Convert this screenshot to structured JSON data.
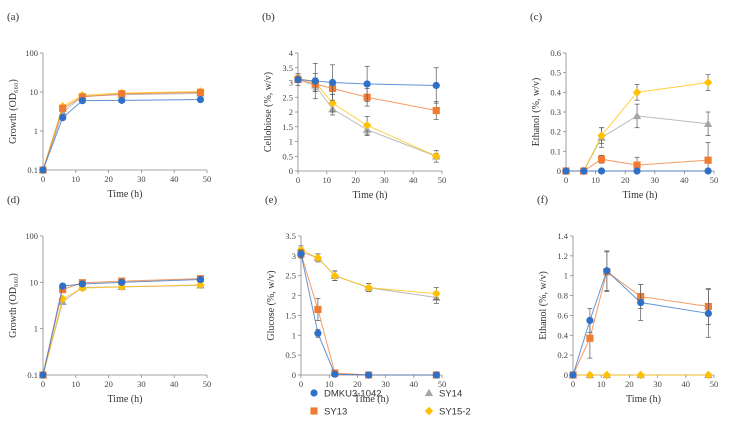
{
  "legend": [
    {
      "name": "DMKU3-1042",
      "color": "#2E6FC7",
      "marker": "circle"
    },
    {
      "name": "SY14",
      "color": "#A6A6A6",
      "marker": "triangle"
    },
    {
      "name": "SY13",
      "color": "#F07B32",
      "marker": "square"
    },
    {
      "name": "SY15-2",
      "color": "#FFC000",
      "marker": "diamond"
    }
  ],
  "chart_data": [
    {
      "id": "a",
      "letter": "(a)",
      "type": "line",
      "yscale": "log",
      "xlabel": "Time (h)",
      "ylabel": "Growth (OD₆₆₀)",
      "xlim": [
        0,
        50
      ],
      "xticks": [
        0,
        10,
        20,
        30,
        40,
        50
      ],
      "ylim": [
        0.1,
        100
      ],
      "yticks": [
        0.1,
        1,
        10,
        100
      ],
      "yticklabels": [
        "0.1",
        "1",
        "10",
        "100"
      ],
      "x": [
        0,
        6,
        12,
        24,
        48
      ],
      "series": [
        {
          "name": "DMKU3-1042",
          "values": [
            0.1,
            2.2,
            6.0,
            6.1,
            6.4
          ],
          "err": [
            0,
            0,
            0,
            0,
            0
          ]
        },
        {
          "name": "SY13",
          "values": [
            0.1,
            3.8,
            7.5,
            9.0,
            9.8
          ],
          "err": [
            0,
            0,
            0,
            0,
            0
          ]
        },
        {
          "name": "SY14",
          "values": [
            0.1,
            3.0,
            7.8,
            8.5,
            9.2
          ],
          "err": [
            0,
            0,
            0,
            0,
            0
          ]
        },
        {
          "name": "SY15-2",
          "values": [
            0.1,
            4.3,
            8.2,
            9.4,
            10.3
          ],
          "err": [
            0,
            0,
            0,
            0,
            0
          ]
        }
      ]
    },
    {
      "id": "b",
      "letter": "(b)",
      "type": "line",
      "yscale": "linear",
      "xlabel": "Time (h)",
      "ylabel": "Cellobiose (%, w/v)",
      "xlim": [
        0,
        50
      ],
      "xticks": [
        0,
        10,
        20,
        30,
        40,
        50
      ],
      "ylim": [
        0,
        4
      ],
      "yticks": [
        0,
        0.5,
        1,
        1.5,
        2,
        2.5,
        3,
        3.5,
        4
      ],
      "yticklabels": [
        "0",
        "0.5",
        "1",
        "1.5",
        "2",
        "2.5",
        "3",
        "3.5",
        "4"
      ],
      "x": [
        0,
        6,
        12,
        24,
        48
      ],
      "series": [
        {
          "name": "DMKU3-1042",
          "values": [
            3.1,
            3.05,
            3.0,
            2.95,
            2.9
          ],
          "err": [
            0.2,
            0.6,
            0.6,
            0.6,
            0.6
          ]
        },
        {
          "name": "SY13",
          "values": [
            3.1,
            2.95,
            2.8,
            2.5,
            2.05
          ],
          "err": [
            0.1,
            0.2,
            0.2,
            0.3,
            0.3
          ]
        },
        {
          "name": "SY14",
          "values": [
            3.1,
            2.9,
            2.1,
            1.4,
            0.5
          ],
          "err": [
            0.1,
            0.2,
            0.2,
            0.2,
            0.1
          ]
        },
        {
          "name": "SY15-2",
          "values": [
            3.15,
            3.0,
            2.3,
            1.55,
            0.5
          ],
          "err": [
            0.1,
            0.3,
            0.3,
            0.3,
            0.2
          ]
        }
      ]
    },
    {
      "id": "c",
      "letter": "(c)",
      "type": "line",
      "yscale": "linear",
      "xlabel": "Time (h)",
      "ylabel": "Ethanol (%, w/v)",
      "xlim": [
        0,
        50
      ],
      "xticks": [
        0,
        10,
        20,
        30,
        40,
        50
      ],
      "ylim": [
        0,
        0.6
      ],
      "yticks": [
        0,
        0.1,
        0.2,
        0.3,
        0.4,
        0.5,
        0.6
      ],
      "yticklabels": [
        "0",
        "0.1",
        "0.2",
        "0.3",
        "0.4",
        "0.5",
        "0.6"
      ],
      "x": [
        0,
        6,
        12,
        24,
        48
      ],
      "series": [
        {
          "name": "DMKU3-1042",
          "values": [
            0,
            0,
            0,
            0,
            0
          ],
          "err": [
            0,
            0,
            0,
            0,
            0
          ]
        },
        {
          "name": "SY13",
          "values": [
            0,
            0,
            0.06,
            0.03,
            0.055
          ],
          "err": [
            0,
            0,
            0.02,
            0.04,
            0.09
          ]
        },
        {
          "name": "SY14",
          "values": [
            0,
            0,
            0.17,
            0.28,
            0.24
          ],
          "err": [
            0,
            0,
            0.05,
            0.06,
            0.06
          ]
        },
        {
          "name": "SY15-2",
          "values": [
            0,
            0,
            0.18,
            0.4,
            0.45
          ],
          "err": [
            0,
            0,
            0.04,
            0.04,
            0.04
          ]
        }
      ]
    },
    {
      "id": "d",
      "letter": "(d)",
      "type": "line",
      "yscale": "log",
      "xlabel": "Time (h)",
      "ylabel": "Growth (OD₆₆₀)",
      "xlim": [
        0,
        50
      ],
      "xticks": [
        0,
        10,
        20,
        30,
        40,
        50
      ],
      "ylim": [
        0.1,
        100
      ],
      "yticks": [
        0.1,
        1,
        10,
        100
      ],
      "yticklabels": [
        "0.1",
        "1",
        "10",
        "100"
      ],
      "x": [
        0,
        6,
        12,
        24,
        48
      ],
      "series": [
        {
          "name": "DMKU3-1042",
          "values": [
            0.1,
            8.3,
            9.2,
            10.0,
            11.5
          ],
          "err": [
            0,
            0,
            0,
            0,
            0
          ]
        },
        {
          "name": "SY13",
          "values": [
            0.1,
            7.0,
            9.8,
            10.6,
            12.0
          ],
          "err": [
            0,
            0,
            0,
            0,
            0
          ]
        },
        {
          "name": "SY14",
          "values": [
            0.1,
            3.8,
            7.8,
            8.0,
            8.6
          ],
          "err": [
            0,
            0,
            0,
            0,
            0
          ]
        },
        {
          "name": "SY15-2",
          "values": [
            0.1,
            4.4,
            7.5,
            8.0,
            8.8
          ],
          "err": [
            0,
            0,
            0,
            0,
            0
          ]
        }
      ]
    },
    {
      "id": "e",
      "letter": "(e)",
      "type": "line",
      "yscale": "linear",
      "xlabel": "Time (h)",
      "ylabel": "Glucose (%, w/v)",
      "xlim": [
        0,
        50
      ],
      "xticks": [
        0,
        10,
        20,
        30,
        40,
        50
      ],
      "ylim": [
        0,
        3.5
      ],
      "yticks": [
        0,
        0.5,
        1,
        1.5,
        2,
        2.5,
        3,
        3.5
      ],
      "yticklabels": [
        "0",
        "0.5",
        "1",
        "1.5",
        "2",
        "2.5",
        "3",
        "3.5"
      ],
      "x": [
        0,
        6,
        12,
        24,
        48
      ],
      "series": [
        {
          "name": "DMKU3-1042",
          "values": [
            3.05,
            1.05,
            0.02,
            0,
            0
          ],
          "err": [
            0.1,
            0.1,
            0.02,
            0,
            0
          ]
        },
        {
          "name": "SY13",
          "values": [
            3.05,
            1.65,
            0.05,
            0,
            0
          ],
          "err": [
            0.1,
            0.28,
            0.03,
            0,
            0
          ]
        },
        {
          "name": "SY14",
          "values": [
            3.1,
            2.95,
            2.5,
            2.2,
            1.95
          ],
          "err": [
            0.1,
            0.1,
            0.12,
            0.1,
            0.15
          ]
        },
        {
          "name": "SY15-2",
          "values": [
            3.15,
            2.95,
            2.5,
            2.2,
            2.05
          ],
          "err": [
            0.1,
            0.1,
            0.12,
            0.1,
            0.15
          ]
        }
      ]
    },
    {
      "id": "f",
      "letter": "(f)",
      "type": "line",
      "yscale": "linear",
      "xlabel": "Time (h)",
      "ylabel": "Ethanol (%, w/v)",
      "xlim": [
        0,
        50
      ],
      "xticks": [
        0,
        10,
        20,
        30,
        40,
        50
      ],
      "ylim": [
        0,
        1.4
      ],
      "yticks": [
        0,
        0.2,
        0.4,
        0.6,
        0.8,
        1,
        1.2,
        1.4
      ],
      "yticklabels": [
        "0",
        "0.2",
        "0.4",
        "0.6",
        "0.8",
        "1",
        "1.2",
        "1.4"
      ],
      "x": [
        0,
        6,
        12,
        24,
        48
      ],
      "series": [
        {
          "name": "DMKU3-1042",
          "values": [
            0,
            0.55,
            1.05,
            0.73,
            0.62
          ],
          "err": [
            0,
            0.12,
            0.2,
            0.18,
            0.24
          ]
        },
        {
          "name": "SY13",
          "values": [
            0,
            0.37,
            1.04,
            0.79,
            0.69
          ],
          "err": [
            0,
            0.2,
            0.2,
            0.12,
            0.18
          ]
        },
        {
          "name": "SY14",
          "values": [
            0,
            0,
            0,
            0,
            0
          ],
          "err": [
            0,
            0,
            0,
            0,
            0
          ]
        },
        {
          "name": "SY15-2",
          "values": [
            0,
            0,
            0,
            0,
            0
          ],
          "err": [
            0,
            0,
            0,
            0,
            0
          ]
        }
      ]
    }
  ]
}
